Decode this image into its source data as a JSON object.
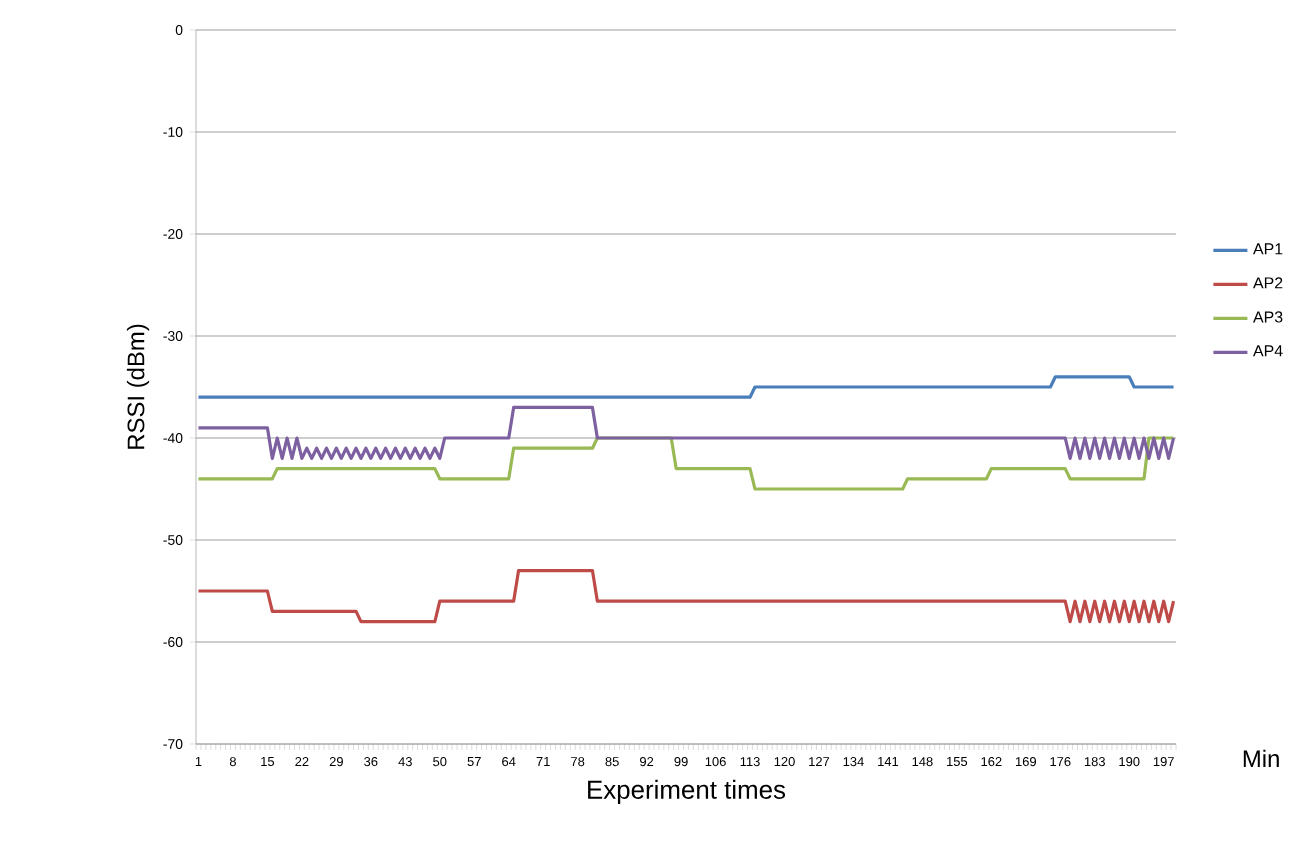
{
  "chart_data": {
    "type": "line",
    "xlabel": "Experiment times",
    "ylabel": "RSSI (dBm)",
    "annotations": [
      "Min"
    ],
    "categories": [
      "1",
      null,
      null,
      null,
      null,
      null,
      null,
      "8",
      null,
      null,
      null,
      null,
      null,
      null,
      "15",
      null,
      null,
      null,
      null,
      null,
      null,
      "22",
      null,
      null,
      null,
      null,
      null,
      null,
      "29",
      null,
      null,
      null,
      null,
      null,
      null,
      "36",
      null,
      null,
      null,
      null,
      null,
      null,
      "43",
      null,
      null,
      null,
      null,
      null,
      null,
      "50",
      null,
      null,
      null,
      null,
      null,
      null,
      "57",
      null,
      null,
      null,
      null,
      null,
      null,
      "64",
      null,
      null,
      null,
      null,
      null,
      null,
      "71",
      null,
      null,
      null,
      null,
      null,
      null,
      "78",
      null,
      null,
      null,
      null,
      null,
      null,
      "85",
      null,
      null,
      null,
      null,
      null,
      null,
      "92",
      null,
      null,
      null,
      null,
      null,
      null,
      "99",
      null,
      null,
      null,
      null,
      null,
      null,
      "106",
      null,
      null,
      null,
      null,
      null,
      null,
      "113",
      null,
      null,
      null,
      null,
      null,
      null,
      "120",
      null,
      null,
      null,
      null,
      null,
      null,
      "127",
      null,
      null,
      null,
      null,
      null,
      null,
      "134",
      null,
      null,
      null,
      null,
      null,
      null,
      "141",
      null,
      null,
      null,
      null,
      null,
      null,
      "148",
      null,
      null,
      null,
      null,
      null,
      null,
      "155",
      null,
      null,
      null,
      null,
      null,
      null,
      "162",
      null,
      null,
      null,
      null,
      null,
      null,
      "169",
      null,
      null,
      null,
      null,
      null,
      null,
      "176",
      null,
      null,
      null,
      null,
      null,
      null,
      "183",
      null,
      null,
      null,
      null,
      null,
      null,
      "190",
      null,
      null,
      null,
      null,
      null,
      null,
      "197",
      null,
      null
    ],
    "ylim": [
      -70,
      0
    ],
    "yticks": [
      -70,
      -60,
      -50,
      -40,
      -30,
      -20,
      -10,
      0
    ],
    "grid": "y",
    "legend": "right",
    "marker": "none",
    "series": [
      {
        "name": "AP1",
        "color": "#4a7ebb",
        "values": [
          -36,
          -36,
          -36,
          -36,
          -36,
          -36,
          -36,
          -36,
          -36,
          -36,
          -36,
          -36,
          -36,
          -36,
          -36,
          -36,
          -36,
          -36,
          -36,
          -36,
          -36,
          -36,
          -36,
          -36,
          -36,
          -36,
          -36,
          -36,
          -36,
          -36,
          -36,
          -36,
          -36,
          -36,
          -36,
          -36,
          -36,
          -36,
          -36,
          -36,
          -36,
          -36,
          -36,
          -36,
          -36,
          -36,
          -36,
          -36,
          -36,
          -36,
          -36,
          -36,
          -36,
          -36,
          -36,
          -36,
          -36,
          -36,
          -36,
          -36,
          -36,
          -36,
          -36,
          -36,
          -36,
          -36,
          -36,
          -36,
          -36,
          -36,
          -36,
          -36,
          -36,
          -36,
          -36,
          -36,
          -36,
          -36,
          -36,
          -36,
          -36,
          -36,
          -36,
          -36,
          -36,
          -36,
          -36,
          -36,
          -36,
          -36,
          -36,
          -36,
          -36,
          -36,
          -36,
          -36,
          -36,
          -36,
          -36,
          -36,
          -36,
          -36,
          -36,
          -36,
          -36,
          -36,
          -36,
          -36,
          -36,
          -36,
          -36,
          -36,
          -36,
          -35,
          -35,
          -35,
          -35,
          -35,
          -35,
          -35,
          -35,
          -35,
          -35,
          -35,
          -35,
          -35,
          -35,
          -35,
          -35,
          -35,
          -35,
          -35,
          -35,
          -35,
          -35,
          -35,
          -35,
          -35,
          -35,
          -35,
          -35,
          -35,
          -35,
          -35,
          -35,
          -35,
          -35,
          -35,
          -35,
          -35,
          -35,
          -35,
          -35,
          -35,
          -35,
          -35,
          -35,
          -35,
          -35,
          -35,
          -35,
          -35,
          -35,
          -35,
          -35,
          -35,
          -35,
          -35,
          -35,
          -35,
          -35,
          -35,
          -35,
          -35,
          -34,
          -34,
          -34,
          -34,
          -34,
          -34,
          -34,
          -34,
          -34,
          -34,
          -34,
          -34,
          -34,
          -34,
          -34,
          -34,
          -35,
          -35,
          -35,
          -35,
          -35,
          -35,
          -35,
          -35,
          -35
        ]
      },
      {
        "name": "AP2",
        "color": "#be4b48",
        "values": [
          -55,
          -55,
          -55,
          -55,
          -55,
          -55,
          -55,
          -55,
          -55,
          -55,
          -55,
          -55,
          -55,
          -55,
          -55,
          -57,
          -57,
          -57,
          -57,
          -57,
          -57,
          -57,
          -57,
          -57,
          -57,
          -57,
          -57,
          -57,
          -57,
          -57,
          -57,
          -57,
          -57,
          -58,
          -58,
          -58,
          -58,
          -58,
          -58,
          -58,
          -58,
          -58,
          -58,
          -58,
          -58,
          -58,
          -58,
          -58,
          -58,
          -56,
          -56,
          -56,
          -56,
          -56,
          -56,
          -56,
          -56,
          -56,
          -56,
          -56,
          -56,
          -56,
          -56,
          -56,
          -56,
          -53,
          -53,
          -53,
          -53,
          -53,
          -53,
          -53,
          -53,
          -53,
          -53,
          -53,
          -53,
          -53,
          -53,
          -53,
          -53,
          -56,
          -56,
          -56,
          -56,
          -56,
          -56,
          -56,
          -56,
          -56,
          -56,
          -56,
          -56,
          -56,
          -56,
          -56,
          -56,
          -56,
          -56,
          -56,
          -56,
          -56,
          -56,
          -56,
          -56,
          -56,
          -56,
          -56,
          -56,
          -56,
          -56,
          -56,
          -56,
          -56,
          -56,
          -56,
          -56,
          -56,
          -56,
          -56,
          -56,
          -56,
          -56,
          -56,
          -56,
          -56,
          -56,
          -56,
          -56,
          -56,
          -56,
          -56,
          -56,
          -56,
          -56,
          -56,
          -56,
          -56,
          -56,
          -56,
          -56,
          -56,
          -56,
          -56,
          -56,
          -56,
          -56,
          -56,
          -56,
          -56,
          -56,
          -56,
          -56,
          -56,
          -56,
          -56,
          -56,
          -56,
          -56,
          -56,
          -56,
          -56,
          -56,
          -56,
          -56,
          -56,
          -56,
          -56,
          -56,
          -56,
          -56,
          -56,
          -56,
          -56,
          -56,
          -56,
          -56,
          -58,
          -56,
          -58,
          -56,
          -58,
          -56,
          -58,
          -56,
          -58,
          -56,
          -58,
          -56,
          -58,
          -56,
          -58,
          -56,
          -58,
          -56,
          -58,
          -56,
          -58,
          -56
        ]
      },
      {
        "name": "AP3",
        "color": "#98b954",
        "values": [
          -44,
          -44,
          -44,
          -44,
          -44,
          -44,
          -44,
          -44,
          -44,
          -44,
          -44,
          -44,
          -44,
          -44,
          -44,
          -44,
          -43,
          -43,
          -43,
          -43,
          -43,
          -43,
          -43,
          -43,
          -43,
          -43,
          -43,
          -43,
          -43,
          -43,
          -43,
          -43,
          -43,
          -43,
          -43,
          -43,
          -43,
          -43,
          -43,
          -43,
          -43,
          -43,
          -43,
          -43,
          -43,
          -43,
          -43,
          -43,
          -43,
          -44,
          -44,
          -44,
          -44,
          -44,
          -44,
          -44,
          -44,
          -44,
          -44,
          -44,
          -44,
          -44,
          -44,
          -44,
          -41,
          -41,
          -41,
          -41,
          -41,
          -41,
          -41,
          -41,
          -41,
          -41,
          -41,
          -41,
          -41,
          -41,
          -41,
          -41,
          -41,
          -40,
          -40,
          -40,
          -40,
          -40,
          -40,
          -40,
          -40,
          -40,
          -40,
          -40,
          -40,
          -40,
          -40,
          -40,
          -40,
          -43,
          -43,
          -43,
          -43,
          -43,
          -43,
          -43,
          -43,
          -43,
          -43,
          -43,
          -43,
          -43,
          -43,
          -43,
          -43,
          -45,
          -45,
          -45,
          -45,
          -45,
          -45,
          -45,
          -45,
          -45,
          -45,
          -45,
          -45,
          -45,
          -45,
          -45,
          -45,
          -45,
          -45,
          -45,
          -45,
          -45,
          -45,
          -45,
          -45,
          -45,
          -45,
          -45,
          -45,
          -45,
          -45,
          -45,
          -44,
          -44,
          -44,
          -44,
          -44,
          -44,
          -44,
          -44,
          -44,
          -44,
          -44,
          -44,
          -44,
          -44,
          -44,
          -44,
          -44,
          -43,
          -43,
          -43,
          -43,
          -43,
          -43,
          -43,
          -43,
          -43,
          -43,
          -43,
          -43,
          -43,
          -43,
          -43,
          -43,
          -44,
          -44,
          -44,
          -44,
          -44,
          -44,
          -44,
          -44,
          -44,
          -44,
          -44,
          -44,
          -44,
          -44,
          -44,
          -44,
          -40,
          -40,
          -40,
          -40,
          -40,
          -40
        ]
      },
      {
        "name": "AP4",
        "color": "#7d60a0",
        "values": [
          -39,
          -39,
          -39,
          -39,
          -39,
          -39,
          -39,
          -39,
          -39,
          -39,
          -39,
          -39,
          -39,
          -39,
          -39,
          -42,
          -40,
          -42,
          -40,
          -42,
          -40,
          -42,
          -41,
          -42,
          -41,
          -42,
          -41,
          -42,
          -41,
          -42,
          -41,
          -42,
          -41,
          -42,
          -41,
          -42,
          -41,
          -42,
          -41,
          -42,
          -41,
          -42,
          -41,
          -42,
          -41,
          -42,
          -41,
          -42,
          -41,
          -42,
          -40,
          -40,
          -40,
          -40,
          -40,
          -40,
          -40,
          -40,
          -40,
          -40,
          -40,
          -40,
          -40,
          -40,
          -37,
          -37,
          -37,
          -37,
          -37,
          -37,
          -37,
          -37,
          -37,
          -37,
          -37,
          -37,
          -37,
          -37,
          -37,
          -37,
          -37,
          -40,
          -40,
          -40,
          -40,
          -40,
          -40,
          -40,
          -40,
          -40,
          -40,
          -40,
          -40,
          -40,
          -40,
          -40,
          -40,
          -40,
          -40,
          -40,
          -40,
          -40,
          -40,
          -40,
          -40,
          -40,
          -40,
          -40,
          -40,
          -40,
          -40,
          -40,
          -40,
          -40,
          -40,
          -40,
          -40,
          -40,
          -40,
          -40,
          -40,
          -40,
          -40,
          -40,
          -40,
          -40,
          -40,
          -40,
          -40,
          -40,
          -40,
          -40,
          -40,
          -40,
          -40,
          -40,
          -40,
          -40,
          -40,
          -40,
          -40,
          -40,
          -40,
          -40,
          -40,
          -40,
          -40,
          -40,
          -40,
          -40,
          -40,
          -40,
          -40,
          -40,
          -40,
          -40,
          -40,
          -40,
          -40,
          -40,
          -40,
          -40,
          -40,
          -40,
          -40,
          -40,
          -40,
          -40,
          -40,
          -40,
          -40,
          -40,
          -40,
          -40,
          -40,
          -40,
          -40,
          -42,
          -40,
          -42,
          -40,
          -42,
          -40,
          -42,
          -40,
          -42,
          -40,
          -42,
          -40,
          -42,
          -40,
          -42,
          -40,
          -42,
          -40,
          -42,
          -40,
          -42,
          -40
        ]
      }
    ]
  }
}
